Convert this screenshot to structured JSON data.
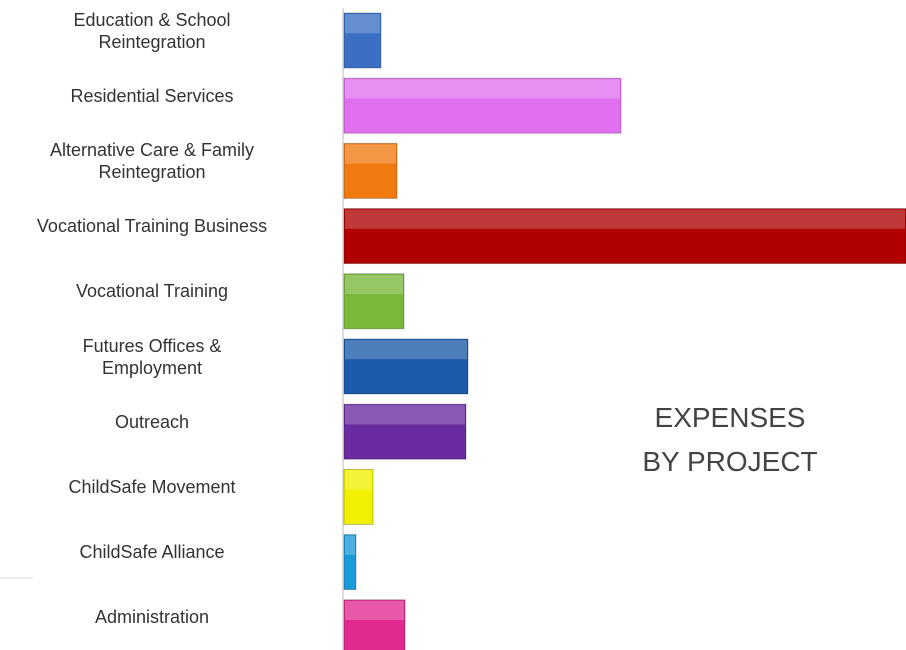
{
  "chart_data": {
    "type": "bar",
    "orientation": "horizontal",
    "title": "EXPENSES\nBY PROJECT",
    "categories": [
      "Education & School\nReintegration",
      "Residential Services",
      "Alternative Care & Family\nReintegration",
      "Vocational Training Business",
      "Vocational Training",
      "Futures Offices &\nEmployment",
      "Outreach",
      "ChildSafe Movement",
      "ChildSafe Alliance",
      "Administration"
    ],
    "values": [
      37,
      277,
      53,
      562,
      60,
      124,
      122,
      29,
      12,
      61
    ],
    "colors": [
      "#3a6fc4",
      "#e070f0",
      "#f07a10",
      "#b00000",
      "#7ab83a",
      "#1a5aa8",
      "#6a2aa0",
      "#f0f000",
      "#1a9ad8",
      "#e02a90"
    ],
    "xlim": [
      0,
      562
    ]
  }
}
